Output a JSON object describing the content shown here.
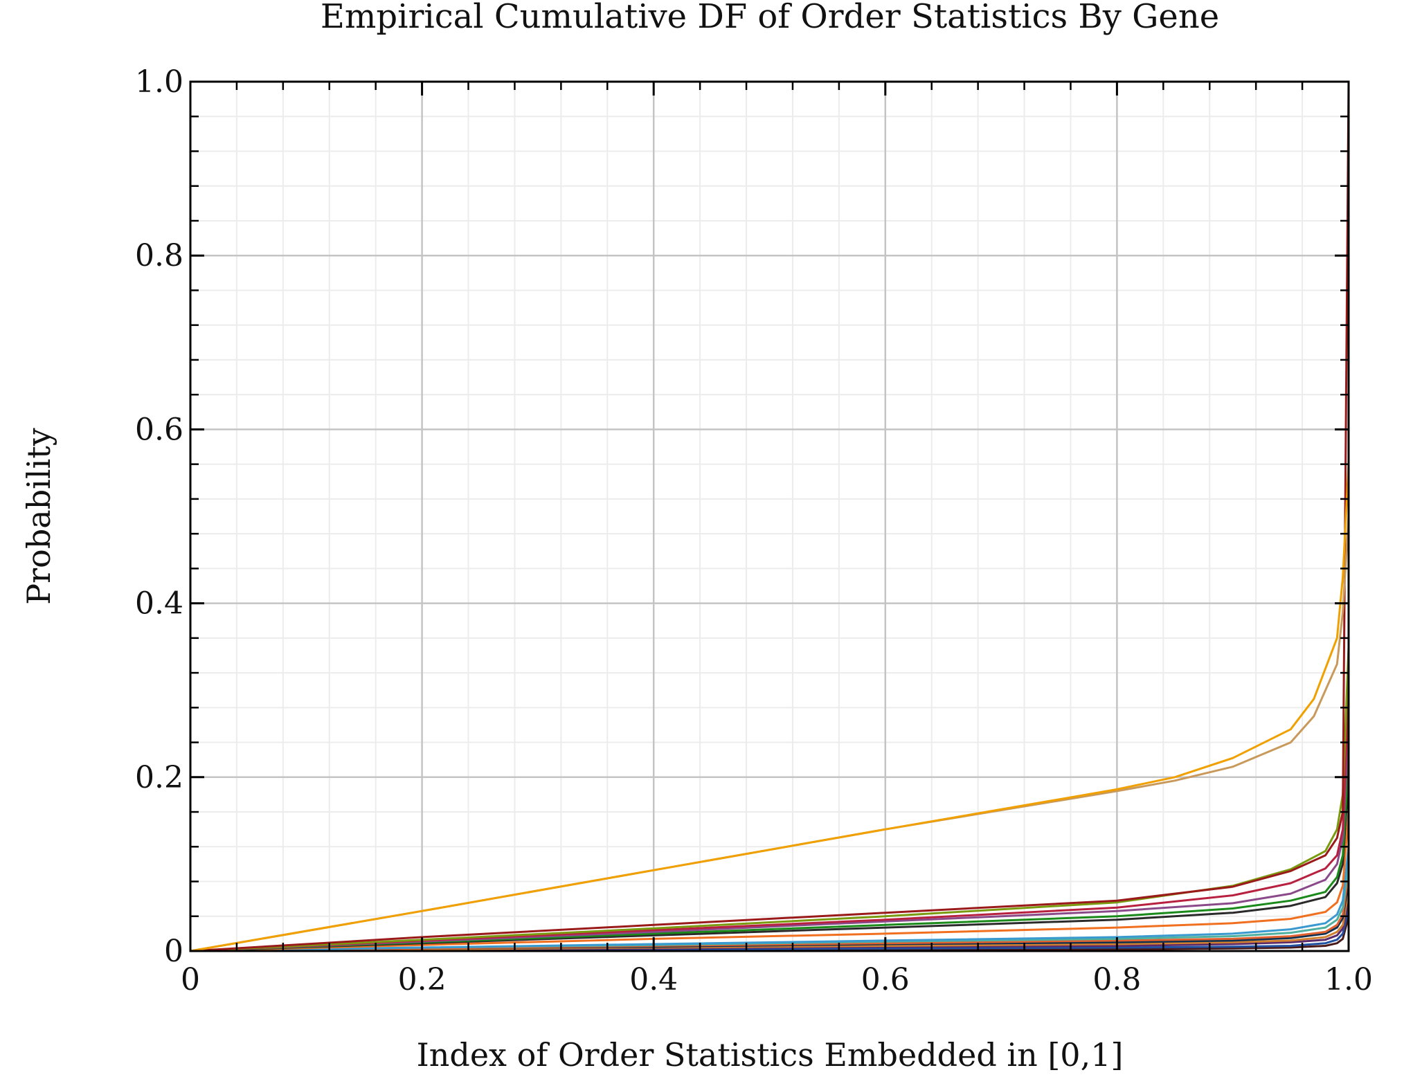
{
  "chart_data": {
    "type": "line",
    "title": "Empirical Cumulative DF of Order Statistics By Gene",
    "xlabel": "Index of Order Statistics Embedded in [0,1]",
    "ylabel": "Probability",
    "xlim": [
      0,
      1
    ],
    "ylim": [
      0,
      1
    ],
    "xticks": [
      0,
      0.2,
      0.4,
      0.6,
      0.8,
      1.0
    ],
    "xtick_labels": [
      "0",
      "0.2",
      "0.4",
      "0.6",
      "0.8",
      "1.0"
    ],
    "yticks": [
      0,
      0.2,
      0.4,
      0.6,
      0.8,
      1.0
    ],
    "ytick_labels": [
      "0",
      "0.2",
      "0.4",
      "0.6",
      "0.8",
      "1.0"
    ],
    "grid": true,
    "legend": "none",
    "series": [
      {
        "color": "#f0a000",
        "x": [
          0,
          0.2,
          0.4,
          0.6,
          0.8,
          0.85,
          0.9,
          0.95,
          0.97,
          0.99,
          0.995,
          1.0
        ],
        "y": [
          0,
          0.046,
          0.093,
          0.14,
          0.186,
          0.2,
          0.222,
          0.255,
          0.29,
          0.36,
          0.43,
          0.56
        ]
      },
      {
        "color": "#c8995a",
        "x": [
          0,
          0.2,
          0.4,
          0.6,
          0.8,
          0.85,
          0.9,
          0.95,
          0.97,
          0.99,
          0.995,
          1.0
        ],
        "y": [
          0,
          0.046,
          0.093,
          0.14,
          0.184,
          0.196,
          0.212,
          0.24,
          0.27,
          0.33,
          0.39,
          0.5
        ]
      },
      {
        "color": "#9a1a1a",
        "x": [
          0,
          0.2,
          0.4,
          0.6,
          0.8,
          0.9,
          0.95,
          0.98,
          0.99,
          0.995,
          1.0
        ],
        "y": [
          0,
          0.016,
          0.03,
          0.044,
          0.058,
          0.074,
          0.092,
          0.11,
          0.13,
          0.16,
          1.0
        ]
      },
      {
        "color": "#7a9a10",
        "x": [
          0,
          0.2,
          0.4,
          0.6,
          0.8,
          0.9,
          0.95,
          0.98,
          0.99,
          0.995,
          1.0
        ],
        "y": [
          0,
          0.013,
          0.026,
          0.04,
          0.056,
          0.075,
          0.094,
          0.115,
          0.14,
          0.18,
          0.35
        ]
      },
      {
        "color": "#b82040",
        "x": [
          0,
          0.2,
          0.4,
          0.6,
          0.8,
          0.9,
          0.95,
          0.98,
          0.99,
          0.995,
          1.0
        ],
        "y": [
          0,
          0.012,
          0.024,
          0.036,
          0.05,
          0.064,
          0.078,
          0.095,
          0.11,
          0.14,
          0.3
        ]
      },
      {
        "color": "#8a4a8a",
        "x": [
          0,
          0.2,
          0.4,
          0.6,
          0.8,
          0.9,
          0.95,
          0.98,
          0.99,
          0.995,
          1.0
        ],
        "y": [
          0,
          0.011,
          0.022,
          0.034,
          0.046,
          0.055,
          0.066,
          0.082,
          0.1,
          0.13,
          0.26
        ]
      },
      {
        "color": "#1a8a1a",
        "x": [
          0,
          0.2,
          0.4,
          0.6,
          0.8,
          0.9,
          0.95,
          0.98,
          0.99,
          0.995,
          1.0
        ],
        "y": [
          0,
          0.01,
          0.02,
          0.03,
          0.04,
          0.049,
          0.058,
          0.068,
          0.085,
          0.11,
          0.22
        ]
      },
      {
        "color": "#2a2a2a",
        "x": [
          0,
          0.2,
          0.4,
          0.6,
          0.8,
          0.9,
          0.95,
          0.98,
          0.99,
          0.995,
          1.0
        ],
        "y": [
          0,
          0.009,
          0.018,
          0.027,
          0.036,
          0.044,
          0.052,
          0.062,
          0.078,
          0.1,
          0.2
        ]
      },
      {
        "color": "#f07020",
        "x": [
          0,
          0.2,
          0.4,
          0.6,
          0.8,
          0.9,
          0.95,
          0.98,
          0.99,
          0.995,
          1.0
        ],
        "y": [
          0,
          0.007,
          0.014,
          0.02,
          0.027,
          0.032,
          0.037,
          0.045,
          0.056,
          0.075,
          0.16
        ]
      },
      {
        "color": "#3a9ad0",
        "x": [
          0,
          0.2,
          0.4,
          0.6,
          0.8,
          0.9,
          0.95,
          0.98,
          0.99,
          0.995,
          1.0
        ],
        "y": [
          0,
          0.004,
          0.008,
          0.012,
          0.016,
          0.02,
          0.025,
          0.032,
          0.042,
          0.058,
          0.12
        ]
      },
      {
        "color": "#50b0a0",
        "x": [
          0,
          0.2,
          0.4,
          0.6,
          0.8,
          0.9,
          0.95,
          0.98,
          0.99,
          0.995,
          1.0
        ],
        "y": [
          0,
          0.004,
          0.007,
          0.011,
          0.014,
          0.017,
          0.021,
          0.027,
          0.036,
          0.05,
          0.1
        ]
      },
      {
        "color": "#e06030",
        "x": [
          0,
          0.2,
          0.4,
          0.6,
          0.8,
          0.9,
          0.95,
          0.98,
          0.99,
          0.995,
          1.0
        ],
        "y": [
          0,
          0.003,
          0.006,
          0.009,
          0.012,
          0.014,
          0.017,
          0.022,
          0.03,
          0.042,
          0.09
        ]
      },
      {
        "color": "#103050",
        "x": [
          0,
          0.2,
          0.4,
          0.6,
          0.8,
          0.9,
          0.95,
          0.98,
          0.99,
          0.995,
          1.0
        ],
        "y": [
          0,
          0.003,
          0.005,
          0.008,
          0.01,
          0.012,
          0.015,
          0.02,
          0.027,
          0.038,
          0.08
        ]
      },
      {
        "color": "#d08030",
        "x": [
          0,
          0.2,
          0.4,
          0.6,
          0.8,
          0.9,
          0.95,
          0.98,
          0.99,
          0.995,
          1.0
        ],
        "y": [
          0,
          0.002,
          0.004,
          0.006,
          0.008,
          0.01,
          0.012,
          0.016,
          0.022,
          0.03,
          0.07
        ]
      },
      {
        "color": "#5a2a6a",
        "x": [
          0,
          0.2,
          0.4,
          0.6,
          0.8,
          0.9,
          0.95,
          0.98,
          0.99,
          0.995,
          1.0
        ],
        "y": [
          0,
          0.002,
          0.003,
          0.005,
          0.006,
          0.008,
          0.01,
          0.013,
          0.018,
          0.026,
          0.06
        ]
      },
      {
        "color": "#2050a0",
        "x": [
          0,
          0.2,
          0.4,
          0.6,
          0.8,
          0.9,
          0.95,
          0.98,
          0.99,
          0.995,
          1.0
        ],
        "y": [
          0,
          0.001,
          0.002,
          0.003,
          0.004,
          0.005,
          0.006,
          0.009,
          0.013,
          0.02,
          0.05
        ]
      },
      {
        "color": "#4a1a1a",
        "x": [
          0,
          0.2,
          0.4,
          0.6,
          0.8,
          0.9,
          0.95,
          0.98,
          0.99,
          0.995,
          1.0
        ],
        "y": [
          0,
          0.001,
          0.001,
          0.002,
          0.002,
          0.003,
          0.004,
          0.006,
          0.009,
          0.014,
          0.04
        ]
      }
    ]
  }
}
